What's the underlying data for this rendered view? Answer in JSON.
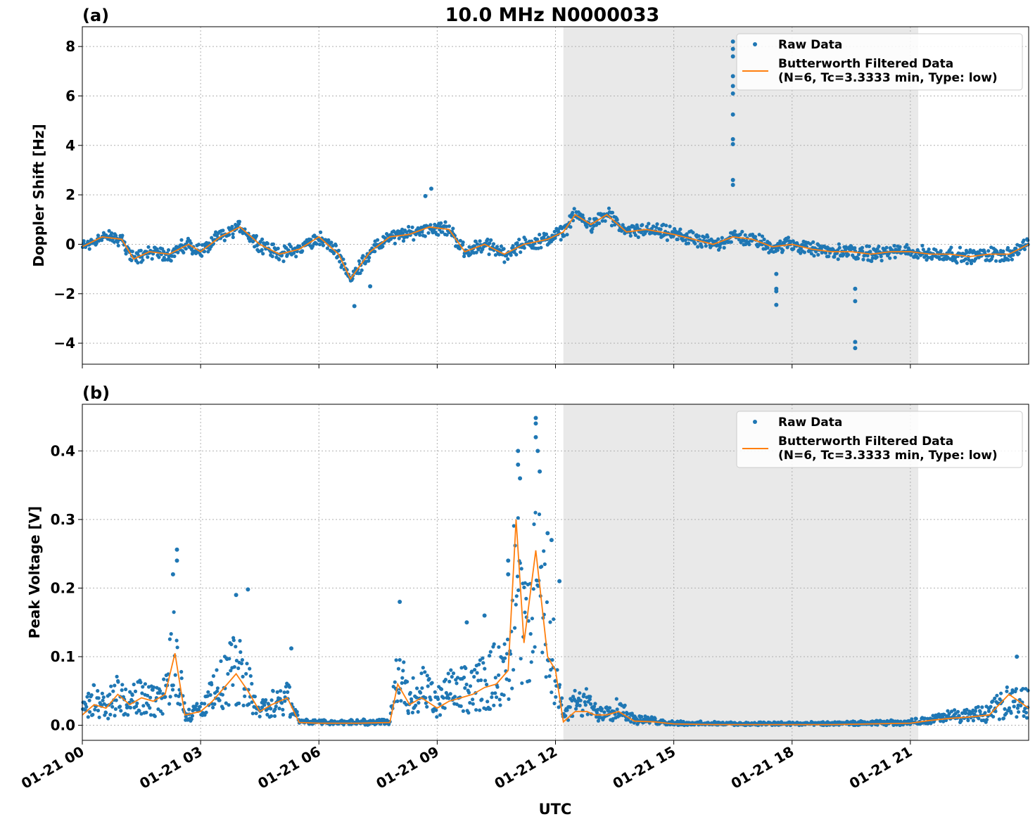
{
  "title": "10.0 MHz N0000033",
  "xlabel": "UTC",
  "x_ticks": [
    {
      "hour": 0,
      "label": "01-21 00"
    },
    {
      "hour": 3,
      "label": "01-21 03"
    },
    {
      "hour": 6,
      "label": "01-21 06"
    },
    {
      "hour": 9,
      "label": "01-21 09"
    },
    {
      "hour": 12,
      "label": "01-21 12"
    },
    {
      "hour": 15,
      "label": "01-21 15"
    },
    {
      "hour": 18,
      "label": "01-21 18"
    },
    {
      "hour": 21,
      "label": "01-21 21"
    }
  ],
  "legend": {
    "raw": "Raw Data",
    "filtered_line1": "Butterworth Filtered Data",
    "filtered_line2": "(N=6, Tc=3.3333 min, Type: low)"
  },
  "colors": {
    "raw": "#1f77b4",
    "filtered": "#ff7f0e",
    "shade": "#d3d3d3"
  },
  "chart_data": [
    {
      "type": "scatter",
      "panel_label": "(a)",
      "ylabel": "Doppler Shift [Hz]",
      "xlim_hours": [
        0,
        24
      ],
      "ylim": [
        -4.85,
        8.8
      ],
      "yticks": [
        -4,
        -2,
        0,
        2,
        4,
        6,
        8
      ],
      "shaded_interval_hours": [
        12.2,
        21.2
      ],
      "grid": true,
      "legend_position": "top-right",
      "series": [
        {
          "name": "Raw Data",
          "style": "markers",
          "spread": 0.35,
          "x_hours": [
            0,
            0.5,
            1.0,
            1.3,
            1.7,
            2.2,
            2.7,
            3.0,
            3.5,
            4.0,
            4.5,
            5.0,
            5.5,
            6.0,
            6.5,
            6.8,
            7.3,
            7.8,
            8.3,
            8.8,
            9.3,
            9.7,
            10.2,
            10.7,
            11.2,
            11.8,
            12.2,
            12.5,
            12.9,
            13.3,
            13.8,
            14.3,
            15.0,
            15.5,
            16.0,
            16.5,
            17.0,
            17.5,
            18.0,
            18.5,
            19.0,
            19.5,
            20.0,
            20.5,
            21.0,
            21.5,
            22.0,
            22.5,
            23.0,
            23.5,
            24.0
          ],
          "y": [
            -0.1,
            0.3,
            0.2,
            -0.6,
            -0.3,
            -0.4,
            0.0,
            -0.3,
            0.3,
            0.7,
            0.0,
            -0.4,
            -0.2,
            0.3,
            -0.4,
            -1.4,
            -0.3,
            0.3,
            0.4,
            0.7,
            0.6,
            -0.3,
            0.0,
            -0.4,
            0.0,
            0.2,
            0.5,
            1.2,
            0.8,
            1.2,
            0.5,
            0.6,
            0.4,
            0.2,
            0.0,
            0.3,
            0.2,
            -0.1,
            0.0,
            -0.2,
            -0.3,
            -0.3,
            -0.4,
            -0.3,
            -0.3,
            -0.4,
            -0.4,
            -0.5,
            -0.4,
            -0.4,
            0.0
          ]
        },
        {
          "name": "Butterworth Filtered Data",
          "style": "line",
          "x_hours": [
            0,
            0.5,
            1.0,
            1.3,
            1.7,
            2.2,
            2.7,
            3.0,
            3.5,
            4.0,
            4.5,
            5.0,
            5.5,
            6.0,
            6.5,
            6.8,
            7.3,
            7.8,
            8.3,
            8.8,
            9.3,
            9.7,
            10.2,
            10.7,
            11.2,
            11.8,
            12.2,
            12.5,
            12.9,
            13.3,
            13.8,
            14.3,
            15.0,
            15.5,
            16.0,
            16.5,
            17.0,
            17.5,
            18.0,
            18.5,
            19.0,
            19.5,
            20.0,
            20.5,
            21.0,
            21.5,
            22.0,
            22.5,
            23.0,
            23.5,
            24.0
          ],
          "y": [
            -0.1,
            0.3,
            0.2,
            -0.6,
            -0.3,
            -0.4,
            0.0,
            -0.3,
            0.3,
            0.7,
            0.0,
            -0.4,
            -0.2,
            0.3,
            -0.4,
            -1.4,
            -0.3,
            0.3,
            0.4,
            0.7,
            0.6,
            -0.3,
            0.0,
            -0.4,
            0.0,
            0.2,
            0.5,
            1.2,
            0.8,
            1.2,
            0.5,
            0.6,
            0.4,
            0.2,
            0.0,
            0.3,
            0.2,
            -0.1,
            0.0,
            -0.2,
            -0.3,
            -0.3,
            -0.4,
            -0.3,
            -0.3,
            -0.4,
            -0.4,
            -0.5,
            -0.4,
            -0.4,
            0.0
          ]
        }
      ],
      "outliers": [
        {
          "x": 16.5,
          "y": 8.2
        },
        {
          "x": 16.5,
          "y": 7.9
        },
        {
          "x": 16.5,
          "y": 7.6
        },
        {
          "x": 16.5,
          "y": 6.8
        },
        {
          "x": 16.5,
          "y": 6.4
        },
        {
          "x": 16.5,
          "y": 6.1
        },
        {
          "x": 16.5,
          "y": 5.25
        },
        {
          "x": 16.5,
          "y": 4.25
        },
        {
          "x": 16.5,
          "y": 4.05
        },
        {
          "x": 16.5,
          "y": 2.6
        },
        {
          "x": 16.5,
          "y": 2.4
        },
        {
          "x": 8.85,
          "y": 2.25
        },
        {
          "x": 8.7,
          "y": 1.95
        },
        {
          "x": 17.6,
          "y": -1.2
        },
        {
          "x": 17.6,
          "y": -1.8
        },
        {
          "x": 17.6,
          "y": -1.9
        },
        {
          "x": 17.6,
          "y": -2.45
        },
        {
          "x": 19.6,
          "y": -1.8
        },
        {
          "x": 19.6,
          "y": -2.3
        },
        {
          "x": 19.6,
          "y": -3.95
        },
        {
          "x": 19.6,
          "y": -4.2
        },
        {
          "x": 6.9,
          "y": -2.5
        },
        {
          "x": 7.3,
          "y": -1.7
        }
      ]
    },
    {
      "type": "scatter",
      "panel_label": "(b)",
      "ylabel": "Peak Voltage [V]",
      "xlim_hours": [
        0,
        24
      ],
      "ylim": [
        -0.022,
        0.468
      ],
      "yticks": [
        0.0,
        0.1,
        0.2,
        0.3,
        0.4
      ],
      "ytick_labels": [
        "0.0",
        "0.1",
        "0.2",
        "0.3",
        "0.4"
      ],
      "shaded_interval_hours": [
        12.2,
        21.2
      ],
      "grid": true,
      "legend_position": "top-right",
      "series": [
        {
          "name": "Raw Data",
          "style": "markers",
          "x_hours": [
            0,
            0.3,
            0.6,
            0.9,
            1.2,
            1.5,
            1.8,
            2.1,
            2.35,
            2.6,
            3.0,
            3.3,
            3.6,
            3.9,
            4.2,
            4.5,
            4.8,
            5.2,
            5.5,
            6.0,
            7.0,
            7.8,
            8.0,
            8.3,
            8.6,
            9.0,
            9.3,
            9.6,
            9.9,
            10.2,
            10.5,
            10.8,
            11.0,
            11.2,
            11.5,
            11.8,
            12.0,
            12.2,
            12.5,
            12.8,
            13.0,
            13.3,
            13.6,
            14.0,
            14.5,
            15.0,
            16.0,
            17.0,
            18.0,
            19.0,
            20.0,
            21.0,
            21.5,
            22.0,
            22.5,
            23.0,
            23.5,
            24.0
          ],
          "y": [
            0.02,
            0.035,
            0.025,
            0.045,
            0.03,
            0.04,
            0.035,
            0.045,
            0.11,
            0.015,
            0.02,
            0.04,
            0.06,
            0.08,
            0.06,
            0.02,
            0.03,
            0.04,
            0.006,
            0.004,
            0.004,
            0.005,
            0.07,
            0.04,
            0.05,
            0.03,
            0.045,
            0.05,
            0.05,
            0.06,
            0.07,
            0.1,
            0.2,
            0.12,
            0.21,
            0.12,
            0.09,
            0.01,
            0.03,
            0.03,
            0.02,
            0.02,
            0.025,
            0.008,
            0.006,
            0.003,
            0.002,
            0.002,
            0.002,
            0.002,
            0.003,
            0.004,
            0.008,
            0.012,
            0.014,
            0.017,
            0.035,
            0.03
          ]
        },
        {
          "name": "Butterworth Filtered Data",
          "style": "line",
          "x_hours": [
            0,
            0.3,
            0.6,
            0.9,
            1.2,
            1.5,
            1.8,
            2.1,
            2.35,
            2.6,
            3.0,
            3.3,
            3.6,
            3.9,
            4.2,
            4.5,
            4.8,
            5.2,
            5.5,
            6.0,
            7.0,
            7.8,
            8.0,
            8.3,
            8.6,
            9.0,
            9.3,
            9.6,
            9.9,
            10.2,
            10.5,
            10.8,
            11.0,
            11.2,
            11.5,
            11.8,
            12.0,
            12.2,
            12.5,
            12.8,
            13.0,
            13.3,
            13.6,
            14.0,
            14.5,
            15.0,
            16.0,
            17.0,
            18.0,
            19.0,
            20.0,
            21.0,
            21.5,
            22.0,
            22.5,
            23.0,
            23.5,
            24.0
          ],
          "y": [
            0.015,
            0.03,
            0.025,
            0.045,
            0.03,
            0.04,
            0.035,
            0.045,
            0.105,
            0.015,
            0.02,
            0.035,
            0.055,
            0.075,
            0.05,
            0.02,
            0.03,
            0.04,
            0.004,
            0.003,
            0.003,
            0.004,
            0.06,
            0.03,
            0.04,
            0.025,
            0.035,
            0.04,
            0.045,
            0.055,
            0.06,
            0.08,
            0.3,
            0.12,
            0.255,
            0.1,
            0.08,
            0.005,
            0.02,
            0.02,
            0.015,
            0.015,
            0.02,
            0.006,
            0.005,
            0.002,
            0.001,
            0.001,
            0.001,
            0.001,
            0.002,
            0.003,
            0.007,
            0.01,
            0.012,
            0.015,
            0.045,
            0.025
          ]
        }
      ],
      "outliers": [
        {
          "x": 2.4,
          "y": 0.256
        },
        {
          "x": 2.4,
          "y": 0.24
        },
        {
          "x": 2.3,
          "y": 0.22
        },
        {
          "x": 4.2,
          "y": 0.198
        },
        {
          "x": 3.9,
          "y": 0.19
        },
        {
          "x": 5.3,
          "y": 0.112
        },
        {
          "x": 8.05,
          "y": 0.18
        },
        {
          "x": 11.05,
          "y": 0.4
        },
        {
          "x": 11.05,
          "y": 0.38
        },
        {
          "x": 11.1,
          "y": 0.36
        },
        {
          "x": 11.5,
          "y": 0.448
        },
        {
          "x": 11.5,
          "y": 0.44
        },
        {
          "x": 11.5,
          "y": 0.42
        },
        {
          "x": 11.55,
          "y": 0.4
        },
        {
          "x": 11.6,
          "y": 0.37
        },
        {
          "x": 11.8,
          "y": 0.28
        },
        {
          "x": 11.9,
          "y": 0.27
        },
        {
          "x": 10.8,
          "y": 0.24
        },
        {
          "x": 10.8,
          "y": 0.22
        },
        {
          "x": 12.1,
          "y": 0.21
        },
        {
          "x": 9.75,
          "y": 0.15
        },
        {
          "x": 10.2,
          "y": 0.16
        },
        {
          "x": 23.7,
          "y": 0.1
        }
      ]
    }
  ]
}
